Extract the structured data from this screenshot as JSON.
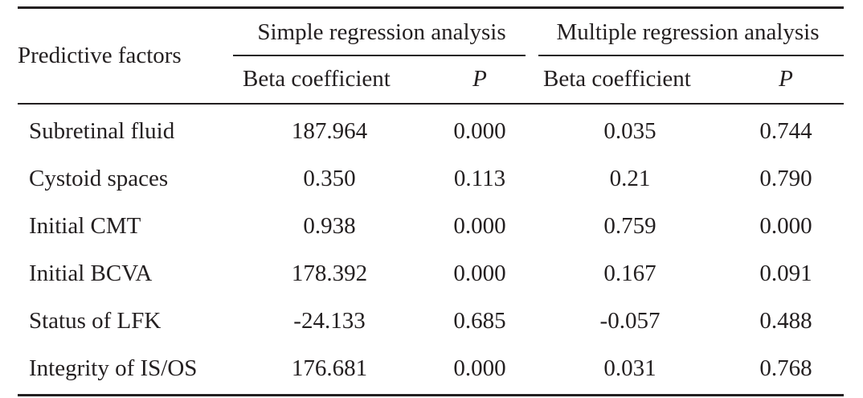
{
  "table": {
    "factor_header": "Predictive factors",
    "groups": [
      {
        "label": "Simple regression analysis",
        "beta_label": "Beta coefficient",
        "p_label": "P"
      },
      {
        "label": "Multiple regression analysis",
        "beta_label": "Beta coefficient",
        "p_label": "P"
      }
    ],
    "rows": [
      {
        "factor": "Subretinal fluid",
        "simple_beta": "187.964",
        "simple_p": "0.000",
        "multiple_beta": "0.035",
        "multiple_p": "0.744"
      },
      {
        "factor": "Cystoid spaces",
        "simple_beta": "0.350",
        "simple_p": "0.113",
        "multiple_beta": "0.21",
        "multiple_p": "0.790"
      },
      {
        "factor": "Initial CMT",
        "simple_beta": "0.938",
        "simple_p": "0.000",
        "multiple_beta": "0.759",
        "multiple_p": "0.000"
      },
      {
        "factor": "Initial BCVA",
        "simple_beta": "178.392",
        "simple_p": "0.000",
        "multiple_beta": "0.167",
        "multiple_p": "0.091"
      },
      {
        "factor": "Status of LFK",
        "simple_beta": "-24.133",
        "simple_p": "0.685",
        "multiple_beta": "-0.057",
        "multiple_p": "0.488"
      },
      {
        "factor": "Integrity of IS/OS",
        "simple_beta": "176.681",
        "simple_p": "0.000",
        "multiple_beta": "0.031",
        "multiple_p": "0.768"
      }
    ]
  }
}
